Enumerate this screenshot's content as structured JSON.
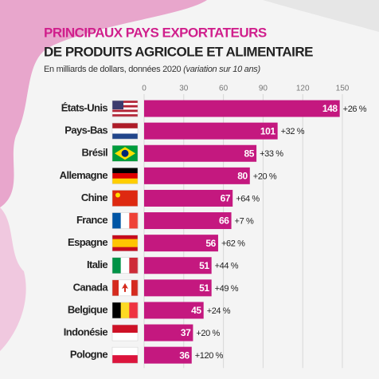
{
  "chart_data": {
    "type": "bar",
    "orientation": "horizontal",
    "title": "PRINCIPAUX PAYS EXPORTATEURS",
    "subtitle": "DE PRODUITS AGRICOLE ET ALIMENTAIRE",
    "note": "En milliards de dollars, données 2020",
    "note_italic": "(variation sur 10 ans)",
    "categories": [
      "États-Unis",
      "Pays-Bas",
      "Brésil",
      "Allemagne",
      "Chine",
      "France",
      "Espagne",
      "Italie",
      "Canada",
      "Belgique",
      "Indonésie",
      "Pologne"
    ],
    "values": [
      148,
      101,
      85,
      80,
      67,
      66,
      56,
      51,
      51,
      45,
      37,
      36
    ],
    "changes": [
      "+26 %",
      "+32 %",
      "+33 %",
      "+20 %",
      "+64 %",
      "+7 %",
      "+62 %",
      "+44 %",
      "+49 %",
      "+24 %",
      "+20 %",
      "+120 %"
    ],
    "color": "#c4187f",
    "xlim": [
      0,
      150
    ],
    "xticks": [
      0,
      30,
      60,
      90,
      120,
      150
    ],
    "grid": true
  }
}
